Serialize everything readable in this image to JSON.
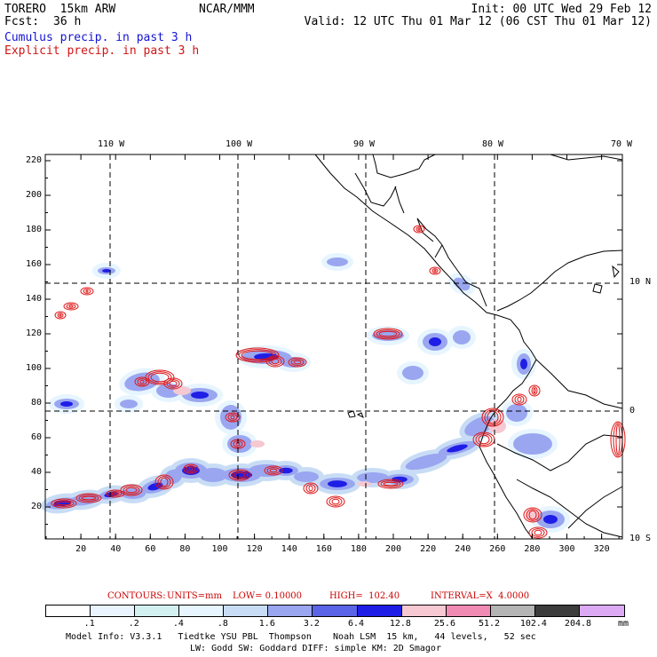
{
  "header": {
    "model": "TORERO  15km ARW",
    "center": "NCAR/MMM",
    "init": "Init: 00 UTC Wed 29 Feb 12",
    "fcst_label": "Fcst:",
    "fcst_value": "36 h",
    "valid": "Valid: 12 UTC Thu 01 Mar 12 (06 CST Thu 01 Mar 12)",
    "cumulus": "Cumulus precip. in past 3 h",
    "explicit": "Explicit precip. in past 3 h"
  },
  "map": {
    "lon_labels": [
      "110 W",
      "100 W",
      "90 W",
      "80 W",
      "70 W"
    ],
    "lat_labels": [
      "10 N",
      "0",
      "10 S"
    ],
    "x_ticks": [
      "20",
      "40",
      "60",
      "80",
      "100",
      "120",
      "140",
      "160",
      "180",
      "200",
      "220",
      "240",
      "260",
      "280",
      "300",
      "320"
    ],
    "y_ticks": [
      "20",
      "40",
      "60",
      "80",
      "100",
      "120",
      "140",
      "160",
      "180",
      "200",
      "220"
    ]
  },
  "contours": {
    "prefix": "CONTOURS:",
    "units": "UNITS=mm",
    "low": "LOW= 0.10000",
    "high": "HIGH=  102.40",
    "interval": "INTERVAL=X  4.0000"
  },
  "colorbar": {
    "labels": [
      ".1",
      ".2",
      ".4",
      ".8",
      "1.6",
      "3.2",
      "6.4",
      "12.8",
      "25.6",
      "51.2",
      "102.4",
      "204.8"
    ],
    "unit": "mm",
    "colors": [
      "#ffffff",
      "#eaf4ff",
      "#d2f0f0",
      "#e6f5ff",
      "#c8ddf5",
      "#9aa6f0",
      "#5a64e6",
      "#1e1ee6",
      "#f5c8d2",
      "#f08cb4",
      "#b4b4b4",
      "#3c3c3c",
      "#dcaaf5"
    ]
  },
  "footer": {
    "line1": "Model Info: V3.3.1   Tiedtke YSU PBL  Thompson    Noah LSM  15 km,   44 levels,   52 sec",
    "line2": "LW: Godd SW: Goddard DIFF: simple KM: 2D Smagor"
  }
}
